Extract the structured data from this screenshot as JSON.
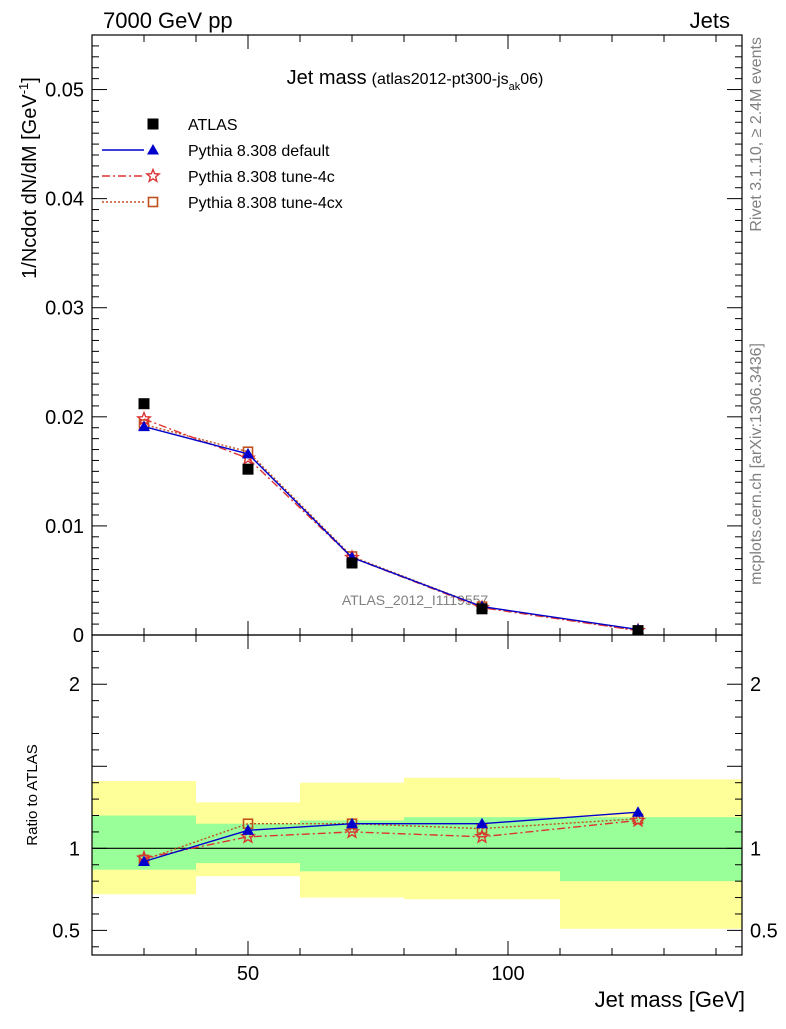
{
  "header": {
    "left": "7000 GeV pp",
    "right": "Jets"
  },
  "side_labels": {
    "rivet": "Rivet 3.1.10, ≥ 2.4M events",
    "mcplots": "mcplots.cern.ch [arXiv:1306.3436]"
  },
  "watermark": "ATLAS_2012_I1119557",
  "chart_data": [
    {
      "type": "line",
      "title": "Jet mass",
      "title_sub_prefix": "(atlas2012-pt300-js",
      "title_sub_subscript": "ak",
      "title_sub_suffix": "06)",
      "xlabel": "Jet mass [GeV]",
      "ylabel": "1/Ncdot dN/dM [GeV",
      "ylabel_sup": "-1",
      "ylabel_close": "]",
      "xlim": [
        20,
        145
      ],
      "ylim": [
        0,
        0.055
      ],
      "yticks": [
        0,
        0.01,
        0.02,
        0.03,
        0.04,
        0.05
      ],
      "ytick_labels": [
        "0",
        "0.01",
        "0.02",
        "0.03",
        "0.04",
        "0.05"
      ],
      "legend_position": "top-left",
      "series": [
        {
          "name": "ATLAS",
          "x": [
            30,
            50,
            70,
            95,
            125
          ],
          "values": [
            0.0212,
            0.0152,
            0.0066,
            0.0024,
            0.0004
          ],
          "color": "#000000",
          "marker": "square"
        },
        {
          "name": "Pythia 8.308 default",
          "x": [
            30,
            50,
            70,
            95,
            125
          ],
          "values": [
            0.0191,
            0.0166,
            0.0071,
            0.0026,
            0.0005
          ],
          "color": "#0000cc",
          "marker": "triangle",
          "line": "solid"
        },
        {
          "name": "Pythia 8.308 tune-4c",
          "x": [
            30,
            50,
            70,
            95,
            125
          ],
          "values": [
            0.0198,
            0.0162,
            0.0071,
            0.0025,
            0.0004
          ],
          "color": "#dd3333",
          "marker": "star",
          "line": "dashdot"
        },
        {
          "name": "Pythia 8.308 tune-4cx",
          "x": [
            30,
            50,
            70,
            95,
            125
          ],
          "values": [
            0.0193,
            0.0168,
            0.0072,
            0.0026,
            0.0004
          ],
          "color": "#c0501c",
          "marker": "open-square",
          "line": "dotted"
        }
      ]
    },
    {
      "type": "line",
      "ylabel": "Ratio to ATLAS",
      "xlabel": "Jet mass [GeV]",
      "xlim": [
        20,
        145
      ],
      "ylim": [
        0.35,
        2.3
      ],
      "yticks": [
        0.5,
        1,
        2
      ],
      "ytick_labels": [
        "0.5",
        "1",
        "2"
      ],
      "xticks": [
        50,
        100
      ],
      "xtick_labels": [
        "50",
        "100"
      ],
      "reference_line": 1,
      "bands": [
        {
          "x": [
            20,
            40
          ],
          "yellow": [
            0.72,
            1.41
          ],
          "green": [
            0.87,
            1.2
          ]
        },
        {
          "x": [
            40,
            60
          ],
          "yellow": [
            0.83,
            1.28
          ],
          "green": [
            0.91,
            1.15
          ]
        },
        {
          "x": [
            60,
            80
          ],
          "yellow": [
            0.7,
            1.4
          ],
          "green": [
            0.86,
            1.17
          ]
        },
        {
          "x": [
            80,
            110
          ],
          "yellow": [
            0.69,
            1.43
          ],
          "green": [
            0.86,
            1.19
          ]
        },
        {
          "x": [
            110,
            145
          ],
          "yellow": [
            0.51,
            1.42
          ],
          "green": [
            0.8,
            1.19
          ]
        }
      ],
      "series": [
        {
          "name": "Pythia 8.308 default",
          "x": [
            30,
            50,
            70,
            95,
            125
          ],
          "values": [
            0.92,
            1.11,
            1.15,
            1.15,
            1.22
          ],
          "color": "#0000cc",
          "marker": "triangle",
          "line": "solid"
        },
        {
          "name": "Pythia 8.308 tune-4c",
          "x": [
            30,
            50,
            70,
            95,
            125
          ],
          "values": [
            0.94,
            1.07,
            1.1,
            1.07,
            1.17
          ],
          "color": "#dd3333",
          "marker": "star",
          "line": "dashdot"
        },
        {
          "name": "Pythia 8.308 tune-4cx",
          "x": [
            30,
            50,
            70,
            95,
            125
          ],
          "values": [
            0.93,
            1.15,
            1.15,
            1.12,
            1.18
          ],
          "color": "#c0501c",
          "marker": "open-square",
          "line": "dotted"
        }
      ]
    }
  ]
}
